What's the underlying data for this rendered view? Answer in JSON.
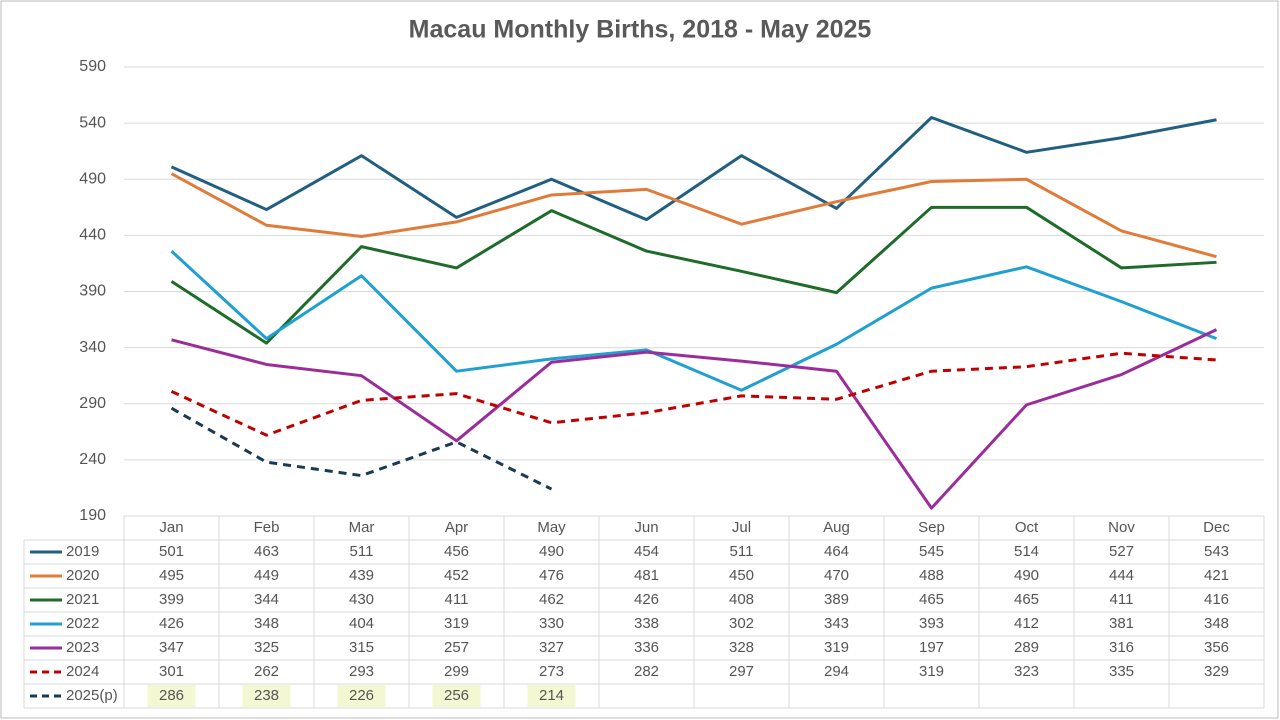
{
  "chart_data": {
    "type": "line",
    "title": "Macau Monthly Births, 2018 - May 2025",
    "categories": [
      "Jan",
      "Feb",
      "Mar",
      "Apr",
      "May",
      "Jun",
      "Jul",
      "Aug",
      "Sep",
      "Oct",
      "Nov",
      "Dec"
    ],
    "ylim": [
      190,
      590
    ],
    "yticks": [
      190,
      240,
      290,
      340,
      390,
      440,
      490,
      540,
      590
    ],
    "grid": true,
    "data_table": true,
    "series": [
      {
        "name": "2019",
        "color": "#215f80",
        "dashed": false,
        "values": [
          501,
          463,
          511,
          456,
          490,
          454,
          511,
          464,
          545,
          514,
          527,
          543
        ]
      },
      {
        "name": "2020",
        "color": "#e07b39",
        "dashed": false,
        "values": [
          495,
          449,
          439,
          452,
          476,
          481,
          450,
          470,
          488,
          490,
          444,
          421
        ]
      },
      {
        "name": "2021",
        "color": "#1e6b2a",
        "dashed": false,
        "values": [
          399,
          344,
          430,
          411,
          462,
          426,
          408,
          389,
          465,
          465,
          411,
          416
        ]
      },
      {
        "name": "2022",
        "color": "#1fa0d0",
        "dashed": false,
        "values": [
          426,
          348,
          404,
          319,
          330,
          338,
          302,
          343,
          393,
          412,
          381,
          348
        ]
      },
      {
        "name": "2023",
        "color": "#9b2d9b",
        "dashed": false,
        "values": [
          347,
          325,
          315,
          257,
          327,
          336,
          328,
          319,
          197,
          289,
          316,
          356
        ]
      },
      {
        "name": "2024",
        "color": "#c00000",
        "dashed": true,
        "values": [
          301,
          262,
          293,
          299,
          273,
          282,
          297,
          294,
          319,
          323,
          335,
          329
        ]
      },
      {
        "name": "2025(p)",
        "color": "#1a3a50",
        "dashed": true,
        "highlight": "#f4f8d2",
        "values": [
          286,
          238,
          226,
          256,
          214,
          null,
          null,
          null,
          null,
          null,
          null,
          null
        ]
      }
    ]
  }
}
